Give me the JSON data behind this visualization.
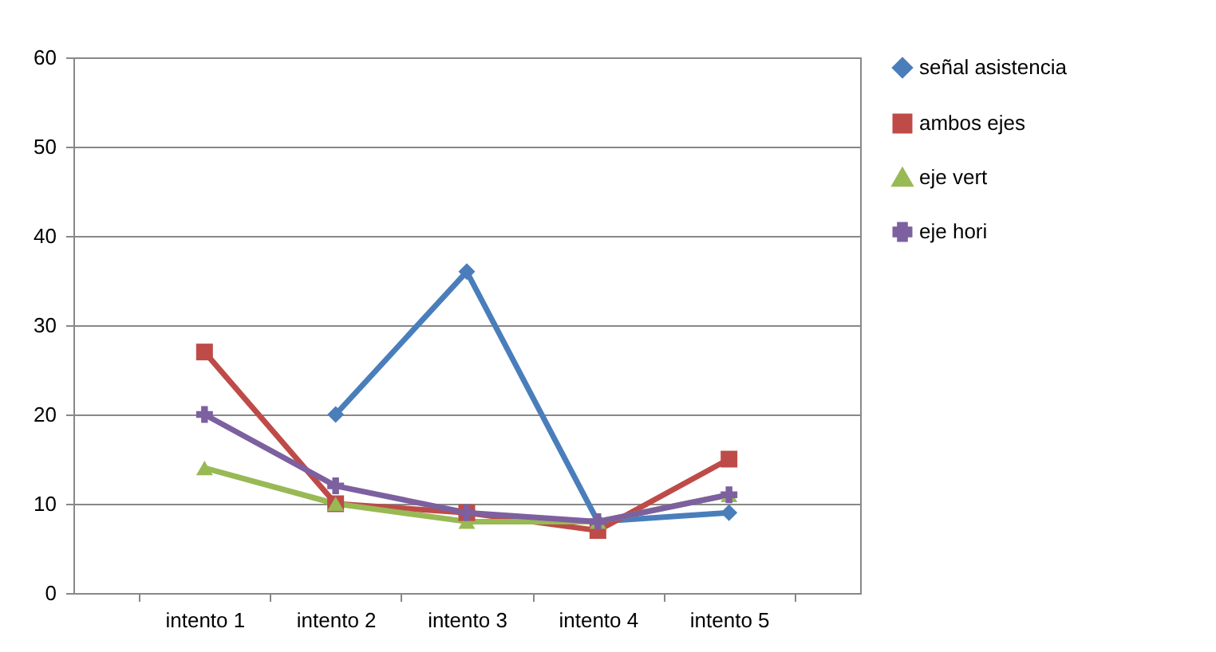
{
  "chart_data": {
    "type": "line",
    "categories": [
      "intento 1",
      "intento 2",
      "intento 3",
      "intento 4",
      "intento 5"
    ],
    "series": [
      {
        "name": "señal asistencia",
        "color": "#4a7ebb",
        "marker": "diamond",
        "values": [
          null,
          20,
          36,
          8,
          9
        ]
      },
      {
        "name": "ambos ejes",
        "color": "#be4b48",
        "marker": "square",
        "values": [
          27,
          10,
          9,
          7,
          15
        ]
      },
      {
        "name": "eje vert",
        "color": "#98b954",
        "marker": "triangle",
        "values": [
          14,
          10,
          8,
          8,
          11
        ]
      },
      {
        "name": "eje hori",
        "color": "#7d60a0",
        "marker": "cross",
        "values": [
          20,
          12,
          9,
          8,
          11
        ]
      }
    ],
    "ylim": [
      0,
      60
    ],
    "yticks": [
      0,
      10,
      20,
      30,
      40,
      50,
      60
    ],
    "grid": "y",
    "legend": "right"
  }
}
